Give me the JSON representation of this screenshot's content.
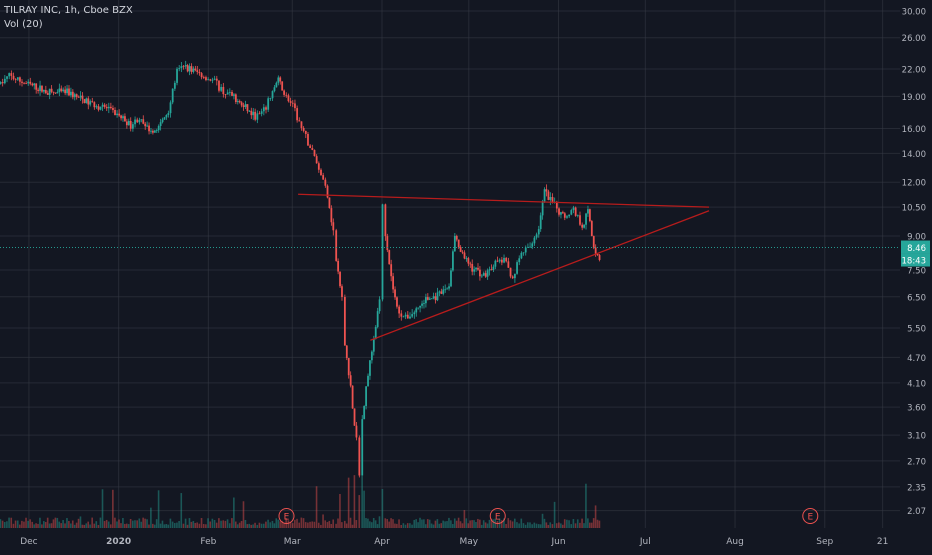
{
  "header": {
    "symbol_line": "TILRAY INC, 1h, Cboe BZX",
    "volume_line": "Vol (20)"
  },
  "chart_data": {
    "type": "candlestick",
    "title": "TILRAY INC, 1h, Cboe BZX",
    "indicator": "Vol (20)",
    "y_scale": "log",
    "ylim": [
      2.0,
      30.0
    ],
    "y_ticks": [
      {
        "value": 30.0,
        "label": "30.00"
      },
      {
        "value": 26.0,
        "label": "26.00"
      },
      {
        "value": 22.0,
        "label": "22.00"
      },
      {
        "value": 19.0,
        "label": "19.00"
      },
      {
        "value": 16.0,
        "label": "16.00"
      },
      {
        "value": 14.0,
        "label": "14.00"
      },
      {
        "value": 12.0,
        "label": "12.00"
      },
      {
        "value": 10.5,
        "label": "10.50"
      },
      {
        "value": 9.0,
        "label": "9.00"
      },
      {
        "value": 7.5,
        "label": "7.50"
      },
      {
        "value": 6.5,
        "label": "6.50"
      },
      {
        "value": 5.5,
        "label": "5.50"
      },
      {
        "value": 4.7,
        "label": "4.70"
      },
      {
        "value": 4.1,
        "label": "4.10"
      },
      {
        "value": 3.6,
        "label": "3.60"
      },
      {
        "value": 3.1,
        "label": "3.10"
      },
      {
        "value": 2.7,
        "label": "2.70"
      },
      {
        "value": 2.35,
        "label": "2.35"
      },
      {
        "value": 2.07,
        "label": "2.07"
      }
    ],
    "x_ticks": [
      "Dec",
      "2020",
      "Feb",
      "Mar",
      "Apr",
      "May",
      "Jun",
      "Jul",
      "Aug",
      "Sep",
      "21"
    ],
    "xlim": [
      "2019-11-21",
      "2020-09-27"
    ],
    "x_tick_dates": [
      "2019-12-01",
      "2020-01-01",
      "2020-02-01",
      "2020-03-01",
      "2020-04-01",
      "2020-05-01",
      "2020-06-01",
      "2020-07-01",
      "2020-08-01",
      "2020-09-01",
      "2020-09-21"
    ],
    "last_price": {
      "label": "8.46",
      "value": 8.46,
      "color": "#26a69a"
    },
    "countdown": {
      "label": "18:43"
    },
    "price_path": [
      [
        "2019-11-21",
        20.3
      ],
      [
        "2019-11-24",
        21.2
      ],
      [
        "2019-11-27",
        20.7
      ],
      [
        "2019-12-02",
        20.1
      ],
      [
        "2019-12-06",
        19.6
      ],
      [
        "2019-12-10",
        19.3
      ],
      [
        "2019-12-14",
        19.5
      ],
      [
        "2019-12-18",
        18.8
      ],
      [
        "2019-12-22",
        18.3
      ],
      [
        "2019-12-27",
        17.9
      ],
      [
        "2020-01-01",
        17.1
      ],
      [
        "2020-01-05",
        16.3
      ],
      [
        "2020-01-08",
        16.9
      ],
      [
        "2020-01-10",
        16.0
      ],
      [
        "2020-01-14",
        15.8
      ],
      [
        "2020-01-18",
        17.6
      ],
      [
        "2020-01-21",
        21.7
      ],
      [
        "2020-01-24",
        22.3
      ],
      [
        "2020-01-28",
        21.6
      ],
      [
        "2020-01-31",
        21.0
      ],
      [
        "2020-02-03",
        20.6
      ],
      [
        "2020-02-06",
        19.5
      ],
      [
        "2020-02-09",
        19.0
      ],
      [
        "2020-02-13",
        18.0
      ],
      [
        "2020-02-17",
        17.0
      ],
      [
        "2020-02-20",
        17.5
      ],
      [
        "2020-02-23",
        19.5
      ],
      [
        "2020-02-25",
        20.8
      ],
      [
        "2020-02-27",
        19.3
      ],
      [
        "2020-03-01",
        18.0
      ],
      [
        "2020-03-04",
        16.0
      ],
      [
        "2020-03-07",
        14.5
      ],
      [
        "2020-03-10",
        13.0
      ],
      [
        "2020-03-13",
        11.3
      ],
      [
        "2020-03-15",
        9.2
      ],
      [
        "2020-03-16",
        7.9
      ],
      [
        "2020-03-18",
        6.4
      ],
      [
        "2020-03-19",
        5.1
      ],
      [
        "2020-03-21",
        4.0
      ],
      [
        "2020-03-23",
        3.0
      ],
      [
        "2020-03-24",
        2.5
      ],
      [
        "2020-03-25",
        3.4
      ],
      [
        "2020-03-27",
        4.3
      ],
      [
        "2020-03-29",
        5.1
      ],
      [
        "2020-03-31",
        6.5
      ],
      [
        "2020-04-01",
        10.5
      ],
      [
        "2020-04-02",
        9.2
      ],
      [
        "2020-04-04",
        7.2
      ],
      [
        "2020-04-06",
        6.1
      ],
      [
        "2020-04-09",
        5.8
      ],
      [
        "2020-04-12",
        6.0
      ],
      [
        "2020-04-16",
        6.4
      ],
      [
        "2020-04-20",
        6.5
      ],
      [
        "2020-04-24",
        6.9
      ],
      [
        "2020-04-26",
        9.0
      ],
      [
        "2020-04-28",
        8.2
      ],
      [
        "2020-05-02",
        7.6
      ],
      [
        "2020-05-06",
        7.3
      ],
      [
        "2020-05-10",
        7.8
      ],
      [
        "2020-05-13",
        7.9
      ],
      [
        "2020-05-16",
        7.2
      ],
      [
        "2020-05-19",
        8.2
      ],
      [
        "2020-05-22",
        8.5
      ],
      [
        "2020-05-25",
        9.4
      ],
      [
        "2020-05-27",
        11.4
      ],
      [
        "2020-05-29",
        10.9
      ],
      [
        "2020-06-01",
        10.2
      ],
      [
        "2020-06-03",
        10.0
      ],
      [
        "2020-06-06",
        10.4
      ],
      [
        "2020-06-09",
        9.5
      ],
      [
        "2020-06-11",
        10.3
      ],
      [
        "2020-06-13",
        8.4
      ],
      [
        "2020-06-15",
        8.0
      ],
      [
        "2020-06-16",
        8.46
      ]
    ],
    "earnings_markers": [
      {
        "date": "2020-02-28",
        "label": "E"
      },
      {
        "date": "2020-05-11",
        "label": "E"
      },
      {
        "date": "2020-08-27",
        "label": "E"
      }
    ],
    "trendlines": [
      {
        "name": "resistance",
        "color": "#b71c1c",
        "from": [
          "2020-03-03",
          11.25
        ],
        "to": [
          "2020-07-23",
          10.5
        ]
      },
      {
        "name": "support",
        "color": "#b71c1c",
        "from": [
          "2020-03-28",
          5.15
        ],
        "to": [
          "2020-07-23",
          10.3
        ]
      }
    ],
    "colors": {
      "up": "#26a69a",
      "down": "#ef5350",
      "background": "#131722",
      "grid": "#363a45"
    }
  }
}
